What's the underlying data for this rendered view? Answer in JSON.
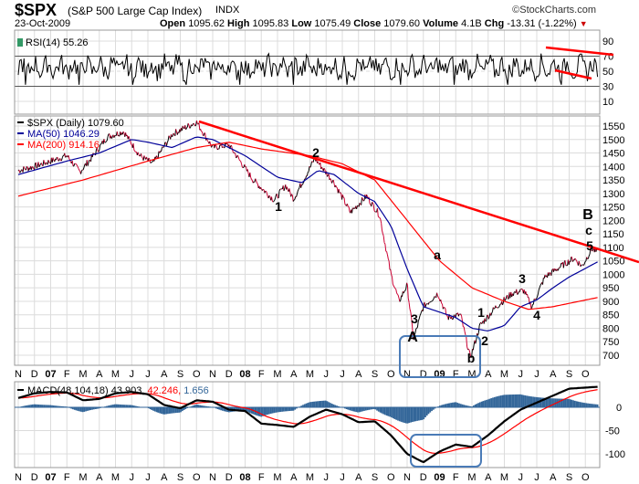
{
  "header": {
    "symbol": "$SPX",
    "name": "(S&P 500 Large Cap Index)",
    "exchange": "INDX",
    "watermark": "©StockCharts.com",
    "date": "23-Oct-2009",
    "open_label": "Open",
    "open": "1095.62",
    "high_label": "High",
    "high": "1095.83",
    "low_label": "Low",
    "low": "1075.49",
    "close_label": "Close",
    "close": "1079.60",
    "volume_label": "Volume",
    "volume": "4.1B",
    "chg_label": "Chg",
    "chg": "-13.31 (-1.22%)"
  },
  "colors": {
    "price": "#000000",
    "down": "#cc0033",
    "ma50": "#000099",
    "ma200": "#ff0000",
    "trend": "#ff0000",
    "macd_hist": "#336699",
    "box": "#4a7bb7"
  },
  "chart_data": [
    {
      "type": "line",
      "title": "RSI(14) 55.26",
      "yticks": [
        90,
        70,
        50,
        30,
        10
      ],
      "ylim": [
        0,
        100
      ],
      "current": 55.26
    },
    {
      "type": "line",
      "title": "$SPX (Daily)",
      "legend": [
        {
          "name": "$SPX (Daily) 1079.60"
        },
        {
          "name": "MA(50) 1046.29"
        },
        {
          "name": "MA(200) 914.16"
        }
      ],
      "yticks": [
        1550,
        1500,
        1450,
        1400,
        1350,
        1300,
        1250,
        1200,
        1150,
        1100,
        1050,
        1000,
        950,
        900,
        850,
        800,
        750,
        700
      ],
      "ylim": [
        670,
        1580
      ],
      "x_month_index_note": "months since Nov 2006",
      "price": [
        [
          0,
          1385
        ],
        [
          1,
          1400
        ],
        [
          2,
          1420
        ],
        [
          3,
          1440
        ],
        [
          3.8,
          1380
        ],
        [
          4.5,
          1430
        ],
        [
          5.5,
          1510
        ],
        [
          6.5,
          1530
        ],
        [
          7.5,
          1440
        ],
        [
          8.3,
          1410
        ],
        [
          9.5,
          1520
        ],
        [
          11,
          1565
        ],
        [
          12,
          1470
        ],
        [
          13,
          1480
        ],
        [
          14.5,
          1350
        ],
        [
          15.8,
          1275
        ],
        [
          16.5,
          1330
        ],
        [
          17,
          1280
        ],
        [
          18.3,
          1430
        ],
        [
          19.5,
          1340
        ],
        [
          20.5,
          1230
        ],
        [
          21.5,
          1290
        ],
        [
          22.3,
          1220
        ],
        [
          23,
          1000
        ],
        [
          23.5,
          900
        ],
        [
          24,
          960
        ],
        [
          24.4,
          760
        ],
        [
          25,
          880
        ],
        [
          25.9,
          930
        ],
        [
          26.5,
          840
        ],
        [
          27.3,
          850
        ],
        [
          27.9,
          690
        ],
        [
          28.5,
          810
        ],
        [
          29.5,
          880
        ],
        [
          30.5,
          930
        ],
        [
          31.2,
          940
        ],
        [
          31.7,
          880
        ],
        [
          32.5,
          990
        ],
        [
          33.5,
          1030
        ],
        [
          34.3,
          1060
        ],
        [
          34.8,
          1030
        ],
        [
          35.4,
          1095
        ],
        [
          35.75,
          1080
        ]
      ],
      "ma50": [
        [
          0,
          1370
        ],
        [
          3,
          1420
        ],
        [
          5,
          1450
        ],
        [
          7,
          1500
        ],
        [
          8,
          1490
        ],
        [
          9.5,
          1470
        ],
        [
          11,
          1510
        ],
        [
          12,
          1500
        ],
        [
          14,
          1440
        ],
        [
          16,
          1360
        ],
        [
          17.5,
          1340
        ],
        [
          18.5,
          1385
        ],
        [
          19.5,
          1370
        ],
        [
          21,
          1300
        ],
        [
          22,
          1270
        ],
        [
          23,
          1180
        ],
        [
          24,
          1020
        ],
        [
          25,
          880
        ],
        [
          26,
          860
        ],
        [
          27,
          840
        ],
        [
          28,
          800
        ],
        [
          29,
          790
        ],
        [
          30,
          810
        ],
        [
          31,
          880
        ],
        [
          32,
          905
        ],
        [
          33,
          950
        ],
        [
          34,
          990
        ],
        [
          35.75,
          1046
        ]
      ],
      "ma200": [
        [
          0,
          1290
        ],
        [
          4,
          1350
        ],
        [
          8,
          1420
        ],
        [
          11,
          1470
        ],
        [
          13,
          1490
        ],
        [
          15,
          1465
        ],
        [
          18,
          1440
        ],
        [
          20,
          1410
        ],
        [
          22,
          1350
        ],
        [
          24,
          1200
        ],
        [
          26,
          1050
        ],
        [
          28,
          950
        ],
        [
          30,
          900
        ],
        [
          31.5,
          870
        ],
        [
          33,
          880
        ],
        [
          35.75,
          914
        ]
      ],
      "annotations": [
        "1",
        "2",
        "a",
        "3",
        "A",
        "b",
        "1",
        "2",
        "3",
        "4",
        "B",
        "c",
        "5"
      ]
    },
    {
      "type": "line",
      "title": "MACD(48,104,18)",
      "values_text": [
        "43.903",
        "42.246",
        "1.656"
      ],
      "yticks": [
        "0",
        "-50",
        "-100"
      ],
      "ylim": [
        -130,
        55
      ],
      "macd": [
        [
          0,
          20
        ],
        [
          1,
          30
        ],
        [
          2,
          33
        ],
        [
          3,
          32
        ],
        [
          4,
          15
        ],
        [
          5,
          18
        ],
        [
          6,
          30
        ],
        [
          7,
          33
        ],
        [
          8,
          28
        ],
        [
          9,
          5
        ],
        [
          10,
          -2
        ],
        [
          11,
          15
        ],
        [
          12,
          12
        ],
        [
          13,
          -5
        ],
        [
          14,
          -8
        ],
        [
          15,
          -35
        ],
        [
          16,
          -38
        ],
        [
          17,
          -42
        ],
        [
          18,
          -20
        ],
        [
          19,
          -5
        ],
        [
          20,
          -15
        ],
        [
          21,
          -32
        ],
        [
          22,
          -30
        ],
        [
          23,
          -60
        ],
        [
          24,
          -100
        ],
        [
          25,
          -118
        ],
        [
          26,
          -95
        ],
        [
          27,
          -80
        ],
        [
          28,
          -85
        ],
        [
          29,
          -60
        ],
        [
          30,
          -30
        ],
        [
          31,
          -5
        ],
        [
          32,
          10
        ],
        [
          33,
          25
        ],
        [
          34,
          40
        ],
        [
          35.75,
          44
        ]
      ]
    },
    {
      "type": "axis",
      "months": [
        "N",
        "D",
        "07",
        "F",
        "M",
        "A",
        "M",
        "J",
        "J",
        "A",
        "S",
        "O",
        "N",
        "D",
        "08",
        "F",
        "M",
        "A",
        "M",
        "J",
        "J",
        "A",
        "S",
        "O",
        "N",
        "D",
        "09",
        "F",
        "M",
        "A",
        "M",
        "J",
        "J",
        "A",
        "S",
        "O"
      ]
    }
  ]
}
